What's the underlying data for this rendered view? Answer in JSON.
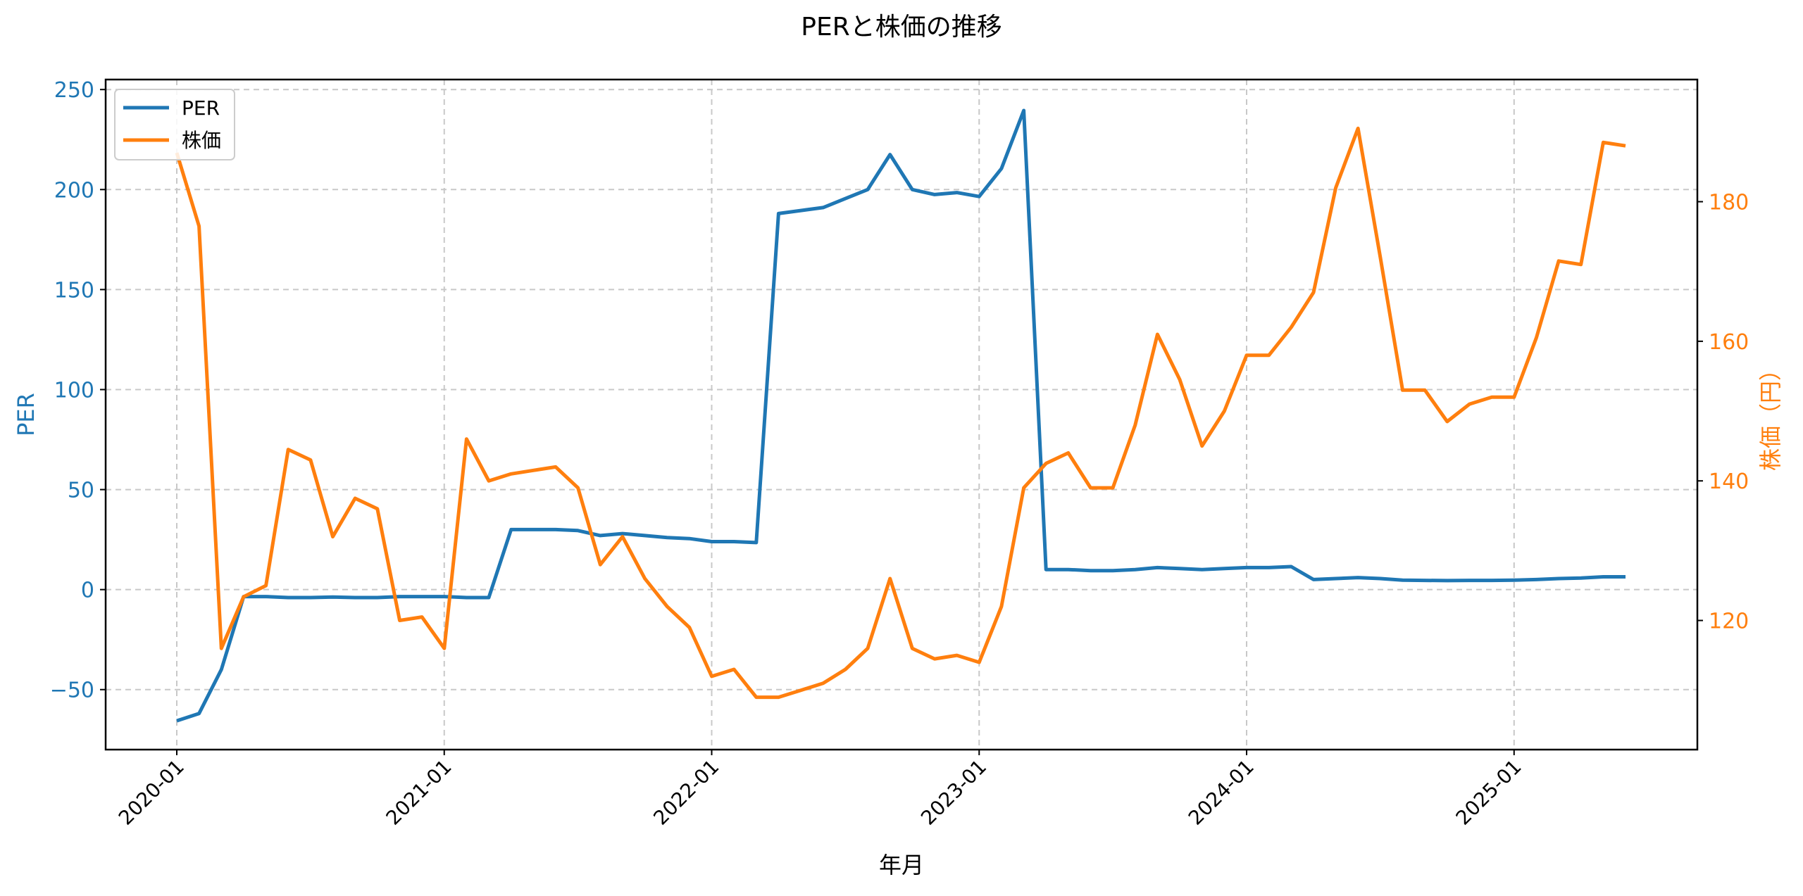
{
  "title": "PERと株価の推移",
  "colors": {
    "per": "#1f77b4",
    "price": "#ff7f0e",
    "grid": "#c8c8c8",
    "axis": "#000000"
  },
  "chart_data": {
    "type": "line",
    "title": "PERと株価の推移",
    "xlabel": "年月",
    "ylabel": "PER",
    "ylabel_right": "株価（円）",
    "ylim": [
      -80,
      255
    ],
    "ylim_right": [
      101.5,
      197.5
    ],
    "grid": true,
    "legend_position": "upper left",
    "x_tick_labels": [
      "2020-01",
      "2021-01",
      "2022-01",
      "2023-01",
      "2024-01",
      "2025-01"
    ],
    "y_ticks_left": [
      -50,
      0,
      50,
      100,
      150,
      200,
      250
    ],
    "y_ticks_right": [
      120,
      140,
      160,
      180
    ],
    "x": [
      "2020-01",
      "2020-02",
      "2020-03",
      "2020-04",
      "2020-05",
      "2020-06",
      "2020-07",
      "2020-08",
      "2020-09",
      "2020-10",
      "2020-11",
      "2020-12",
      "2021-01",
      "2021-02",
      "2021-03",
      "2021-04",
      "2021-05",
      "2021-06",
      "2021-07",
      "2021-08",
      "2021-09",
      "2021-10",
      "2021-11",
      "2021-12",
      "2022-01",
      "2022-02",
      "2022-03",
      "2022-04",
      "2022-05",
      "2022-06",
      "2022-07",
      "2022-08",
      "2022-09",
      "2022-10",
      "2022-11",
      "2022-12",
      "2023-01",
      "2023-02",
      "2023-03",
      "2023-04",
      "2023-05",
      "2023-06",
      "2023-07",
      "2023-08",
      "2023-09",
      "2023-10",
      "2023-11",
      "2023-12",
      "2024-01",
      "2024-02",
      "2024-03",
      "2024-04",
      "2024-05",
      "2024-06",
      "2024-07",
      "2024-08",
      "2024-09",
      "2024-10",
      "2024-11",
      "2024-12",
      "2025-01",
      "2025-02",
      "2025-03",
      "2025-04",
      "2025-05",
      "2025-06"
    ],
    "series": [
      {
        "name": "PER",
        "axis": "left",
        "color": "#1f77b4",
        "values": [
          -65.6,
          -62,
          -40,
          -3.5,
          -3.5,
          -4,
          -4,
          -3.7,
          -4,
          -4,
          -3.5,
          -3.5,
          -3.5,
          -4,
          -4,
          30,
          30,
          30,
          29.5,
          27,
          28,
          27,
          26,
          25.5,
          24,
          24,
          23.5,
          188,
          189.5,
          191,
          195.5,
          200,
          217.5,
          200,
          197.5,
          198.5,
          196.5,
          210.5,
          239.5,
          10,
          10,
          9.5,
          9.5,
          10,
          11,
          10.5,
          10,
          10.5,
          11,
          11,
          11.5,
          5,
          5.5,
          6,
          5.5,
          4.7,
          4.6,
          4.5,
          4.6,
          4.6,
          4.7,
          5,
          5.5,
          5.8,
          6.4,
          6.4
        ]
      },
      {
        "name": "株価",
        "axis": "right",
        "color": "#ff7f0e",
        "values": [
          187,
          176.5,
          116,
          123.4,
          125,
          144.5,
          143,
          132,
          137.5,
          136,
          120,
          120.5,
          116,
          146,
          140,
          141,
          141.5,
          142,
          139,
          128,
          132,
          126,
          122,
          119,
          112,
          113,
          109,
          109,
          110,
          111,
          113,
          116,
          126,
          116,
          114.5,
          115,
          114,
          122,
          139,
          142.5,
          144,
          139,
          139,
          148,
          161,
          154.5,
          145,
          150,
          158,
          158,
          162,
          167,
          182,
          190.5,
          172,
          153,
          153,
          148.5,
          151,
          152,
          152,
          160.5,
          171.5,
          171,
          188.5,
          188
        ]
      }
    ]
  }
}
